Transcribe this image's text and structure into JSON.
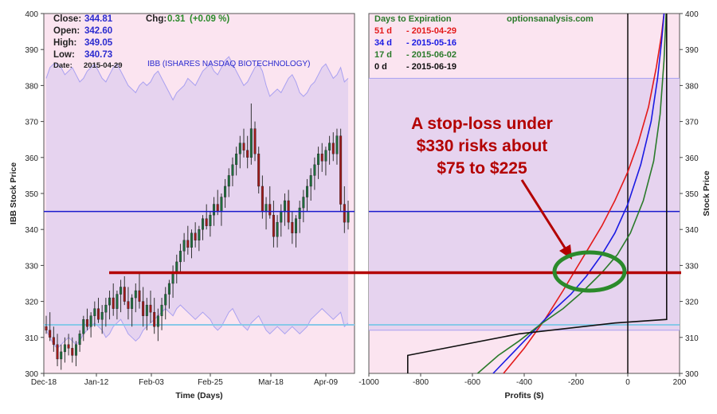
{
  "colors": {
    "plot_bg": "#fbe4f0",
    "band_fill": "#e6d3ef",
    "band_line": "#a9a0f0",
    "candle_up": "#1f6e3d",
    "candle_down": "#9e1a1a",
    "price_line": "#1a1acd",
    "low_line": "#88c8e8",
    "stop_line": "#b30000",
    "annotation": "#b30000",
    "ellipse": "#2b8a2b",
    "curve_51d": "#e31a1a",
    "curve_34d": "#1a1ae3",
    "curve_17d": "#2a7a2a",
    "curve_0d": "#111111",
    "link": "#2a7a2a"
  },
  "header": {
    "close_label": "Close:",
    "close_value": "344.81",
    "open_label": "Open:",
    "open_value": "342.60",
    "high_label": "High:",
    "high_value": "349.05",
    "low_label": "Low:",
    "low_value": "340.73",
    "date_label": "Date:",
    "date_value": "2015-04-29",
    "chg_label": "Chg:",
    "chg_value": "0.31",
    "chg_pct": "(+0.09 %)",
    "ticker_name": "IBB (ISHARES NASDAQ BIOTECHNOLOGY)"
  },
  "legend": {
    "title": "Days to Expiration",
    "site": "optionsanalysis.com",
    "items": [
      {
        "days": "51 d",
        "date": "- 2015-04-29"
      },
      {
        "days": "34 d",
        "date": "- 2015-05-16"
      },
      {
        "days": "17 d",
        "date": "- 2015-06-02"
      },
      {
        "days": "0 d",
        "date": "- 2015-06-19"
      }
    ]
  },
  "annotation": {
    "lines": [
      "A stop-loss under",
      "$330 risks about",
      "$75 to $225"
    ]
  },
  "chart_data": [
    {
      "type": "candlestick",
      "ylabel": "IBB Stock Price",
      "xlabel": "Time (Days)",
      "ylim": [
        300,
        400
      ],
      "y_ticks": [
        "300",
        "310",
        "320",
        "330",
        "340",
        "350",
        "360",
        "370",
        "380",
        "390",
        "400"
      ],
      "x_ticks": [
        "Dec-18",
        "Jan-12",
        "Feb-03",
        "Feb-25",
        "Mar-18",
        "Apr-09"
      ],
      "current_price": 345,
      "stop_level": 328,
      "lower_band_ref": 313.5,
      "candles": [
        [
          313,
          316,
          311,
          312
        ],
        [
          312,
          317,
          309,
          310
        ],
        [
          310,
          313,
          306,
          308
        ],
        [
          308,
          311,
          302,
          304
        ],
        [
          304,
          308,
          301,
          306
        ],
        [
          306,
          310,
          303,
          308
        ],
        [
          308,
          311,
          305,
          307
        ],
        [
          307,
          310,
          303,
          305
        ],
        [
          305,
          309,
          302,
          308
        ],
        [
          308,
          312,
          306,
          311
        ],
        [
          311,
          316,
          309,
          315
        ],
        [
          315,
          318,
          312,
          313
        ],
        [
          313,
          317,
          310,
          316
        ],
        [
          316,
          320,
          313,
          318
        ],
        [
          318,
          321,
          314,
          315
        ],
        [
          315,
          319,
          311,
          317
        ],
        [
          317,
          321,
          313,
          319
        ],
        [
          319,
          323,
          315,
          321
        ],
        [
          321,
          325,
          316,
          318
        ],
        [
          318,
          323,
          315,
          322
        ],
        [
          322,
          326,
          317,
          324
        ],
        [
          324,
          327,
          319,
          320
        ],
        [
          320,
          324,
          315,
          318
        ],
        [
          318,
          322,
          313,
          321
        ],
        [
          321,
          325,
          317,
          323
        ],
        [
          323,
          328,
          318,
          320
        ],
        [
          320,
          324,
          313,
          316
        ],
        [
          316,
          321,
          312,
          319
        ],
        [
          319,
          323,
          314,
          317
        ],
        [
          317,
          321,
          311,
          313
        ],
        [
          313,
          318,
          309,
          316
        ],
        [
          316,
          321,
          312,
          319
        ],
        [
          319,
          324,
          315,
          322
        ],
        [
          322,
          326,
          318,
          325
        ],
        [
          325,
          330,
          321,
          328
        ],
        [
          328,
          333,
          325,
          331
        ],
        [
          331,
          336,
          328,
          334
        ],
        [
          334,
          339,
          331,
          337
        ],
        [
          337,
          341,
          333,
          335
        ],
        [
          335,
          340,
          332,
          339
        ],
        [
          339,
          342,
          335,
          337
        ],
        [
          337,
          341,
          334,
          340
        ],
        [
          340,
          344,
          337,
          343
        ],
        [
          343,
          347,
          340,
          341
        ],
        [
          341,
          345,
          338,
          344
        ],
        [
          344,
          349,
          341,
          347
        ],
        [
          347,
          351,
          344,
          345
        ],
        [
          345,
          350,
          341,
          349
        ],
        [
          349,
          354,
          346,
          352
        ],
        [
          352,
          357,
          349,
          355
        ],
        [
          355,
          360,
          352,
          358
        ],
        [
          358,
          363,
          355,
          361
        ],
        [
          361,
          366,
          357,
          364
        ],
        [
          364,
          368,
          360,
          362
        ],
        [
          362,
          366,
          357,
          360
        ],
        [
          360,
          375,
          358,
          368
        ],
        [
          368,
          370,
          359,
          361
        ],
        [
          361,
          363,
          350,
          352
        ],
        [
          352,
          355,
          343,
          345
        ],
        [
          345,
          349,
          340,
          347
        ],
        [
          347,
          352,
          343,
          344
        ],
        [
          344,
          348,
          335,
          338
        ],
        [
          338,
          344,
          335,
          342
        ],
        [
          342,
          347,
          338,
          345
        ],
        [
          345,
          350,
          341,
          348
        ],
        [
          348,
          351,
          340,
          342
        ],
        [
          342,
          345,
          336,
          339
        ],
        [
          339,
          344,
          335,
          343
        ],
        [
          343,
          348,
          339,
          346
        ],
        [
          346,
          351,
          342,
          349
        ],
        [
          349,
          354,
          345,
          352
        ],
        [
          352,
          357,
          348,
          355
        ],
        [
          355,
          360,
          351,
          358
        ],
        [
          358,
          363,
          354,
          361
        ],
        [
          361,
          364,
          356,
          359
        ],
        [
          359,
          363,
          355,
          362
        ],
        [
          362,
          366,
          358,
          364
        ],
        [
          364,
          367,
          359,
          361
        ],
        [
          361,
          368,
          358,
          366
        ],
        [
          366,
          368,
          345,
          347
        ],
        [
          347,
          352,
          339,
          342
        ],
        [
          342,
          348,
          340,
          345
        ]
      ],
      "upper_band": [
        382,
        385,
        386,
        386,
        385,
        383,
        384,
        385,
        383,
        381,
        382,
        384,
        385,
        386,
        384,
        382,
        381,
        383,
        385,
        386,
        384,
        382,
        380,
        379,
        378,
        380,
        381,
        380,
        381,
        383,
        384,
        382,
        380,
        378,
        376,
        378,
        379,
        380,
        382,
        381,
        380,
        382,
        384,
        385,
        386,
        384,
        383,
        385,
        387,
        388,
        386,
        384,
        382,
        380,
        381,
        383,
        385,
        386,
        384,
        380,
        377,
        378,
        379,
        378,
        380,
        382,
        383,
        381,
        378,
        377,
        378,
        380,
        381,
        383,
        385,
        386,
        384,
        382,
        383,
        385,
        381,
        382
      ],
      "lower_band": [
        312,
        310,
        308,
        307,
        308,
        309,
        310,
        309,
        308,
        309,
        311,
        312,
        313,
        314,
        313,
        312,
        310,
        311,
        313,
        314,
        315,
        313,
        311,
        310,
        309,
        310,
        312,
        313,
        314,
        315,
        316,
        317,
        318,
        317,
        316,
        318,
        319,
        318,
        317,
        316,
        315,
        316,
        317,
        316,
        315,
        313,
        312,
        313,
        315,
        317,
        318,
        316,
        314,
        313,
        312,
        314,
        315,
        316,
        314,
        312,
        311,
        312,
        313,
        312,
        311,
        312,
        313,
        312,
        311,
        312,
        313,
        315,
        316,
        317,
        318,
        317,
        316,
        315,
        316,
        317,
        313,
        314
      ]
    },
    {
      "type": "line",
      "xlabel": "Profits ($)",
      "ylabel": "Stock Price",
      "xlim": [
        -1000,
        200
      ],
      "ylim": [
        300,
        400
      ],
      "x_ticks": [
        "-1000",
        "-800",
        "-600",
        "-400",
        "-200",
        "0",
        "200"
      ],
      "y_ticks": [
        "300",
        "310",
        "320",
        "330",
        "340",
        "350",
        "360",
        "370",
        "380",
        "390",
        "400"
      ],
      "curves": [
        {
          "x": [
            -480,
            -400,
            -320,
            -250,
            -200,
            -150,
            -100,
            -50,
            0,
            40,
            80,
            110,
            130,
            140
          ],
          "y": [
            300,
            307,
            315,
            323,
            329,
            335,
            341,
            348,
            356,
            364,
            374,
            385,
            394,
            400
          ]
        },
        {
          "x": [
            -520,
            -440,
            -360,
            -280,
            -220,
            -160,
            -100,
            -50,
            0,
            50,
            90,
            115,
            130,
            140
          ],
          "y": [
            300,
            306,
            312,
            318,
            322,
            327,
            333,
            339,
            347,
            358,
            370,
            382,
            392,
            400
          ]
        },
        {
          "x": [
            -580,
            -500,
            -420,
            -330,
            -250,
            -170,
            -100,
            -40,
            10,
            60,
            100,
            125,
            140,
            148
          ],
          "y": [
            300,
            305,
            309,
            314,
            318,
            323,
            328,
            333,
            339,
            348,
            359,
            372,
            387,
            400
          ]
        },
        {
          "x": [
            -850,
            -850,
            -420,
            -50,
            150,
            150
          ],
          "y": [
            300,
            305,
            311,
            314,
            315,
            400
          ]
        }
      ]
    }
  ]
}
